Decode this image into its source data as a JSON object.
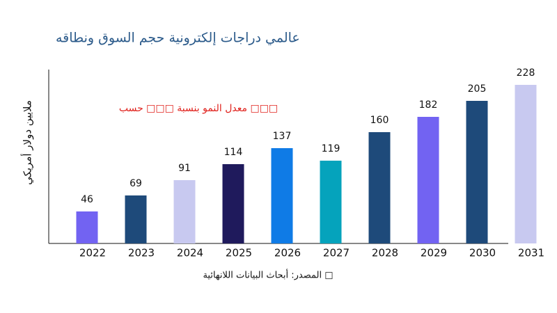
{
  "chart_data": {
    "type": "bar",
    "title": "عالمي دراجات إلكترونية حجم السوق ونطاقه",
    "y_label": "ملايين دولار أمريكي",
    "annotation": "معدل النمو بنسبة □□□ حسب □□□",
    "source": "المصدر: أبحاث البيانات اللانهائية □",
    "categories": [
      "2022",
      "2023",
      "2024",
      "2025",
      "2026",
      "2027",
      "2028",
      "2029",
      "2030",
      "2031"
    ],
    "values": [
      46,
      69,
      91,
      114,
      137,
      119,
      160,
      182,
      205,
      228
    ],
    "colors": [
      "#7263f2",
      "#1e4a7a",
      "#c8c9f0",
      "#1f1a5c",
      "#0f7be6",
      "#05a3bc",
      "#1e4a7a",
      "#7263f2",
      "#1e4a7a",
      "#c8c9f0"
    ],
    "ylim": [
      0,
      250
    ]
  }
}
